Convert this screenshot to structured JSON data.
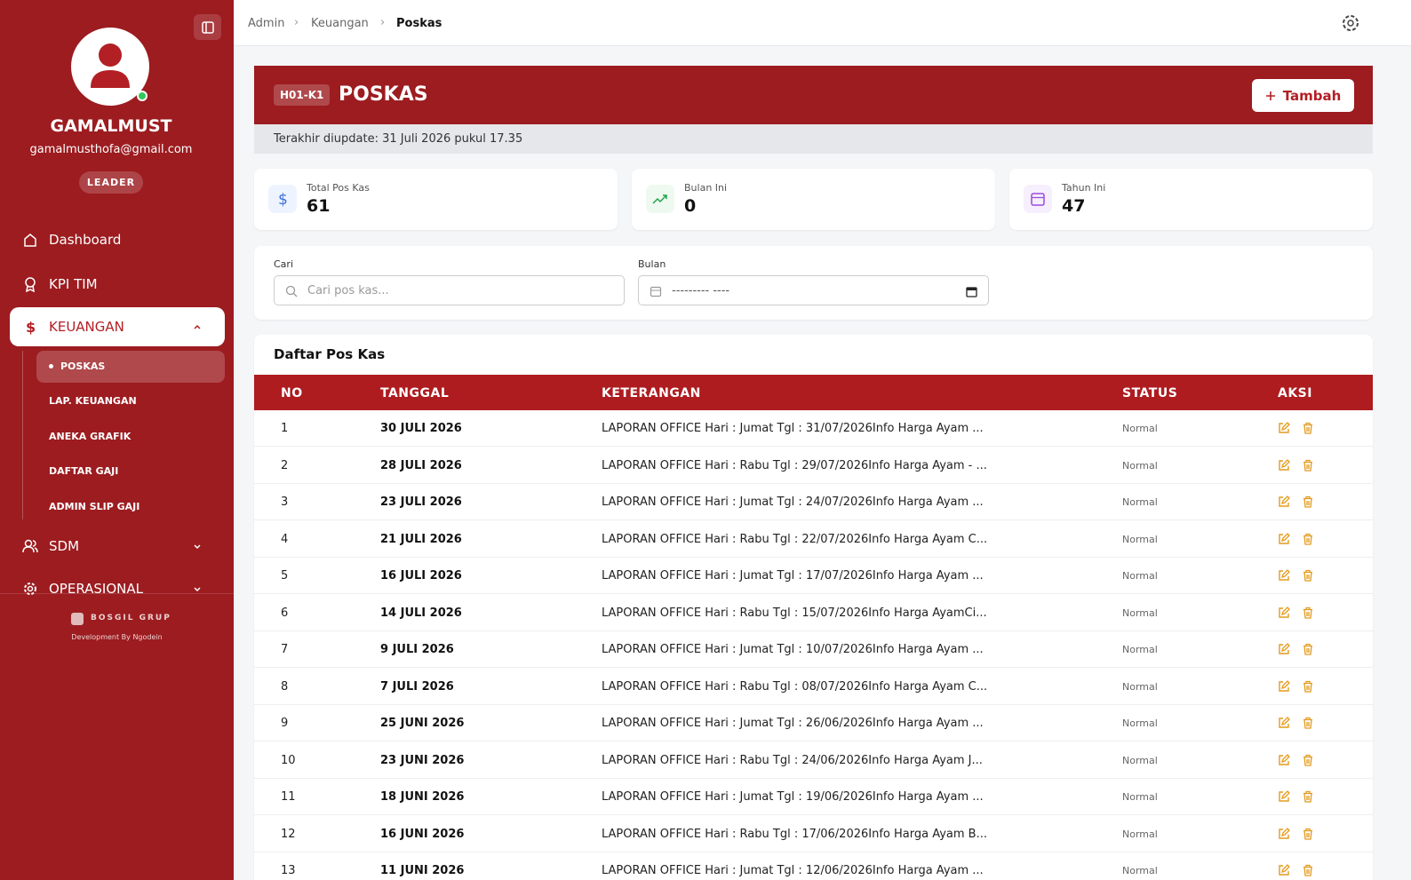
{
  "sidebar": {
    "user": {
      "name": "GAMALMUST",
      "email": "gamalmusthofa@gmail.com",
      "role": "LEADER"
    },
    "menu": [
      {
        "label": "Dashboard"
      },
      {
        "label": "KPI TIM"
      },
      {
        "label": "KEUANGAN",
        "children": [
          "POSKAS",
          "LAP. KEUANGAN",
          "ANEKA GRAFIK",
          "DAFTAR GAJI",
          "ADMIN SLIP GAJI"
        ]
      },
      {
        "label": "SDM"
      },
      {
        "label": "OPERASIONAL"
      }
    ],
    "footer": {
      "brand": "BOSGIL GRUP",
      "credit": "Development By Ngodein"
    }
  },
  "breadcrumb": [
    "Admin",
    "Keuangan",
    "Poskas"
  ],
  "header": {
    "code": "H01-K1",
    "title": "POSKAS",
    "button": "Tambah",
    "updated": "Terakhir diupdate: 31 Juli 2026 pukul 17.35"
  },
  "stats": [
    {
      "label": "Total Pos Kas",
      "value": 61
    },
    {
      "label": "Bulan Ini",
      "value": 0
    },
    {
      "label": "Tahun Ini",
      "value": 47
    }
  ],
  "filters": {
    "search_label": "Cari",
    "search_placeholder": "Cari pos kas...",
    "month_label": "Bulan",
    "month_placeholder": "--------- ----"
  },
  "table": {
    "title": "Daftar Pos Kas",
    "columns": [
      "NO",
      "TANGGAL",
      "KETERANGAN",
      "STATUS",
      "AKSI"
    ],
    "rows": [
      [
        1,
        "30 JULI 2026",
        "LAPORAN OFFICE Hari : Jumat Tgl : 31/07/2026Info Harga Ayam ...",
        "Normal"
      ],
      [
        2,
        "28 JULI 2026",
        "LAPORAN OFFICE Hari : Rabu Tgl : 29/07/2026Info Harga Ayam - ...",
        "Normal"
      ],
      [
        3,
        "23 JULI 2026",
        "LAPORAN OFFICE Hari : Jumat Tgl : 24/07/2026Info Harga Ayam ...",
        "Normal"
      ],
      [
        4,
        "21 JULI 2026",
        "LAPORAN OFFICE Hari : Rabu Tgl : 22/07/2026Info Harga Ayam C...",
        "Normal"
      ],
      [
        5,
        "16 JULI 2026",
        "LAPORAN OFFICE Hari : Jumat Tgl : 17/07/2026Info Harga Ayam ...",
        "Normal"
      ],
      [
        6,
        "14 JULI 2026",
        "LAPORAN OFFICE Hari : Rabu Tgl : 15/07/2026Info Harga AyamCi...",
        "Normal"
      ],
      [
        7,
        "9 JULI 2026",
        "LAPORAN OFFICE Hari : Jumat Tgl : 10/07/2026Info Harga Ayam ...",
        "Normal"
      ],
      [
        8,
        "7 JULI 2026",
        "LAPORAN OFFICE Hari : Rabu Tgl : 08/07/2026Info Harga Ayam C...",
        "Normal"
      ],
      [
        9,
        "25 JUNI 2026",
        "LAPORAN OFFICE Hari : Jumat Tgl : 26/06/2026Info Harga Ayam ...",
        "Normal"
      ],
      [
        10,
        "23 JUNI 2026",
        "LAPORAN OFFICE Hari : Rabu Tgl : 24/06/2026Info Harga Ayam J...",
        "Normal"
      ],
      [
        11,
        "18 JUNI 2026",
        "LAPORAN OFFICE Hari : Jumat Tgl : 19/06/2026Info Harga Ayam ...",
        "Normal"
      ],
      [
        12,
        "16 JUNI 2026",
        "LAPORAN OFFICE Hari : Rabu Tgl : 17/06/2026Info Harga Ayam B...",
        "Normal"
      ],
      [
        13,
        "11 JUNI 2026",
        "LAPORAN OFFICE Hari : Jumat Tgl : 12/06/2026Info Harga Ayam ...",
        "Normal"
      ]
    ]
  }
}
